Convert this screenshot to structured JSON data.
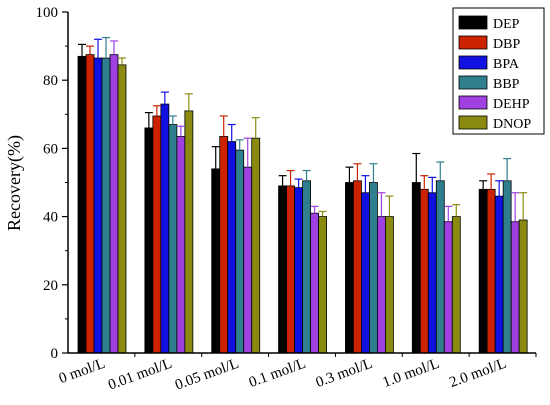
{
  "chart_data": {
    "type": "bar",
    "ylabel": "Recovery(%)",
    "xlabel": "",
    "ylim": [
      0,
      100
    ],
    "yticks": [
      0,
      20,
      40,
      60,
      80,
      100
    ],
    "categories": [
      "0 mol/L",
      "0.01 mol/L",
      "0.05 mol/L",
      "0.1 mol/L",
      "0.3 mol/L",
      "1.0 mol/L",
      "2.0 mol/L"
    ],
    "legend_position": "top-right",
    "grid": false,
    "series": [
      {
        "name": "DEP",
        "color": "#000000",
        "values": [
          87,
          66,
          54,
          49,
          50,
          50,
          48
        ],
        "errors": [
          3.5,
          4.5,
          6.5,
          3.0,
          4.5,
          8.5,
          2.5
        ]
      },
      {
        "name": "DBP",
        "color": "#cc2200",
        "values": [
          87.5,
          69.5,
          63.5,
          49,
          50.5,
          48,
          48
        ],
        "errors": [
          2.5,
          3.0,
          6.0,
          4.5,
          5.0,
          4.0,
          4.5
        ]
      },
      {
        "name": "BPA",
        "color": "#1010e0",
        "values": [
          86.5,
          73,
          62,
          48.5,
          47,
          47,
          46
        ],
        "errors": [
          5.5,
          3.5,
          5.0,
          2.5,
          5.0,
          4.5,
          4.5
        ]
      },
      {
        "name": "BBP",
        "color": "#2f7f8f",
        "values": [
          86.5,
          67,
          59.5,
          50.5,
          50,
          50.5,
          50.5
        ],
        "errors": [
          6.0,
          2.5,
          3.0,
          3.0,
          5.5,
          5.5,
          6.5
        ]
      },
      {
        "name": "DEHP",
        "color": "#a040e0",
        "values": [
          87.5,
          63.5,
          54.5,
          41,
          40,
          38.5,
          38.5
        ],
        "errors": [
          4.0,
          3.0,
          8.5,
          2.0,
          7.0,
          4.5,
          8.5
        ]
      },
      {
        "name": "DNOP",
        "color": "#8a8a10",
        "values": [
          84.5,
          71,
          63,
          40,
          40,
          40,
          39
        ],
        "errors": [
          2.0,
          5.0,
          6.0,
          1.5,
          6.0,
          3.5,
          8.0
        ]
      }
    ]
  }
}
